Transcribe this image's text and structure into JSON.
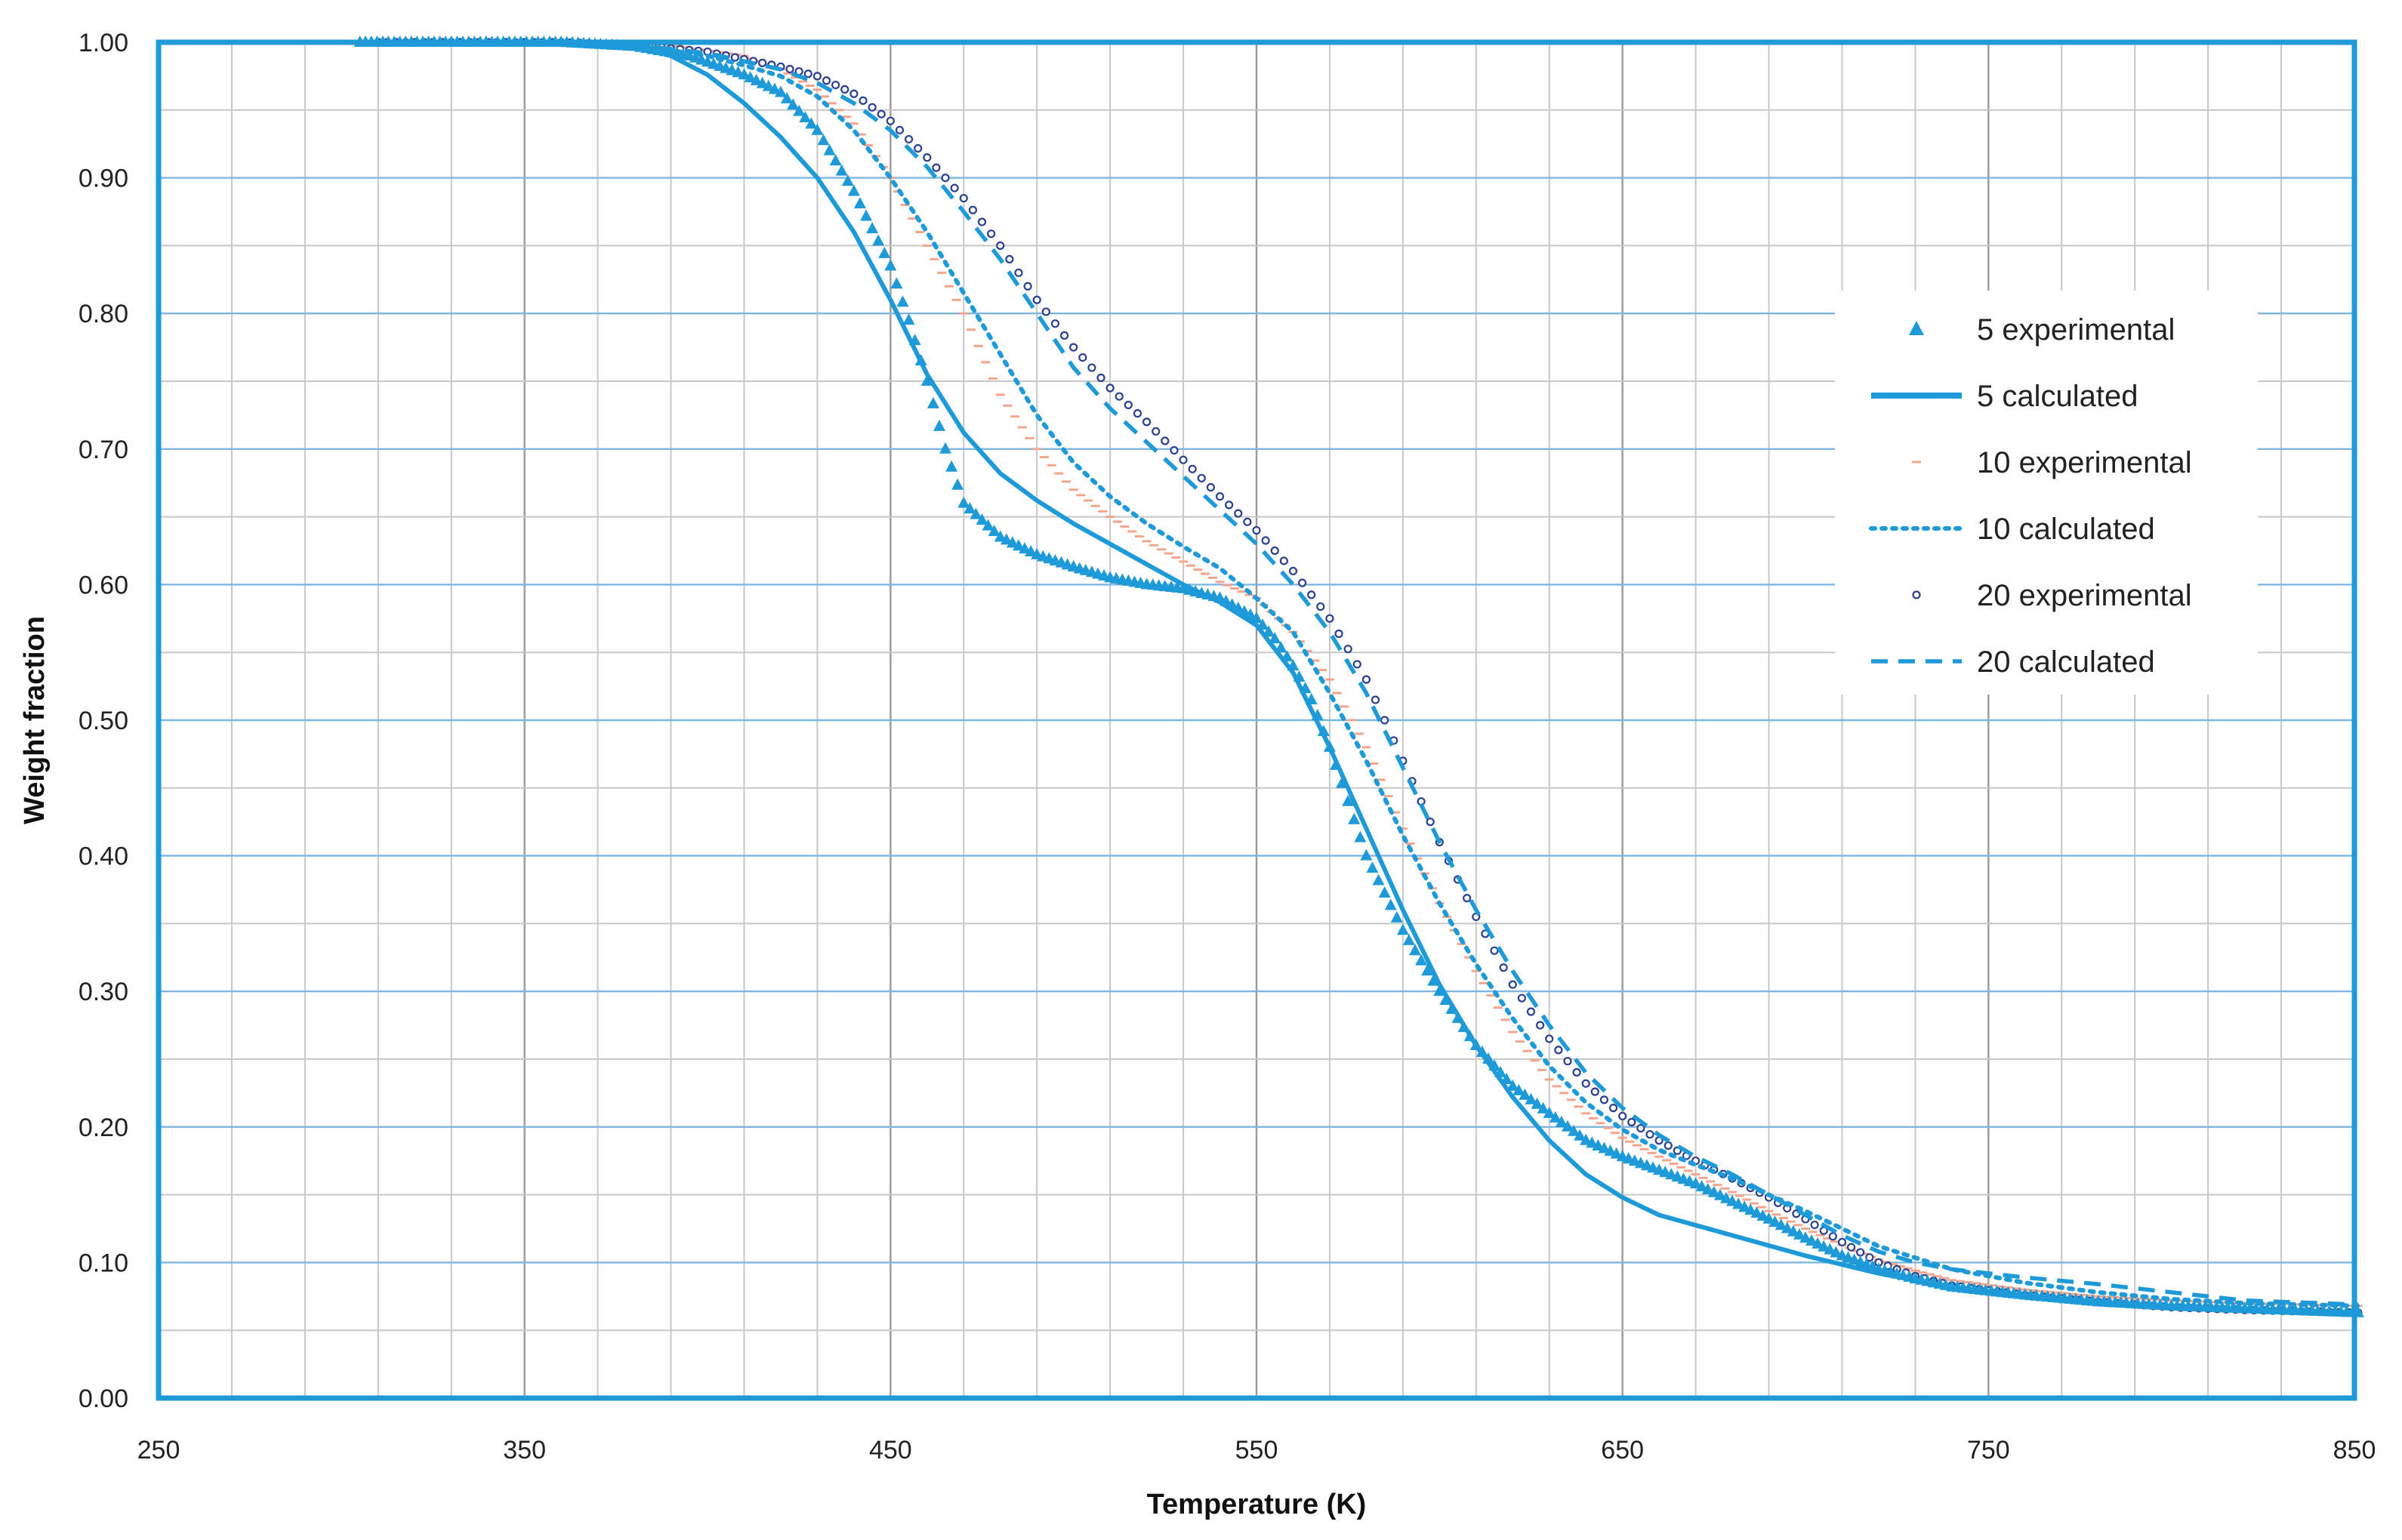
{
  "chart_data": {
    "type": "line",
    "title": "",
    "xlabel": "Temperature (K)",
    "ylabel": "Weight fraction",
    "xlim": [
      250,
      850
    ],
    "ylim": [
      0.0,
      1.0
    ],
    "x_major_ticks": [
      250,
      350,
      450,
      550,
      650,
      750,
      850
    ],
    "x_tick_labels": [
      "250",
      "350",
      "450",
      "550",
      "650",
      "750",
      "850"
    ],
    "x_minor_step": 20,
    "y_major_ticks": [
      0.0,
      0.1,
      0.2,
      0.3,
      0.4,
      0.5,
      0.6,
      0.7,
      0.8,
      0.9,
      1.0
    ],
    "y_tick_labels": [
      "0.00",
      "0.10",
      "0.20",
      "0.30",
      "0.40",
      "0.50",
      "0.60",
      "0.70",
      "0.80",
      "0.90",
      "1.00"
    ],
    "y_minor_step": 0.05,
    "grid": true,
    "legend_position": "right",
    "colors": {
      "blue": "#1f9ad9",
      "salmon": "#f5a58c",
      "navy": "#2b3f8f",
      "grid_major": "#7fb6e0",
      "grid_minor": "#c8c8c8",
      "frame": "#1f9ad9"
    },
    "series": [
      {
        "name": "5 experimental",
        "style": "triangle-markers",
        "color": "#1f9ad9",
        "x": [
          305,
          330,
          360,
          380,
          395,
          410,
          420,
          430,
          440,
          450,
          455,
          460,
          465,
          470,
          480,
          490,
          500,
          510,
          520,
          530,
          540,
          550,
          555,
          560,
          565,
          570,
          575,
          580,
          590,
          600,
          610,
          620,
          630,
          640,
          650,
          660,
          670,
          680,
          690,
          700,
          710,
          720,
          730,
          740,
          760,
          780,
          800,
          820,
          840,
          851
        ],
        "y": [
          1.0,
          1.0,
          1.0,
          0.997,
          0.99,
          0.976,
          0.963,
          0.935,
          0.89,
          0.835,
          0.795,
          0.75,
          0.7,
          0.66,
          0.635,
          0.622,
          0.613,
          0.605,
          0.6,
          0.597,
          0.59,
          0.575,
          0.56,
          0.54,
          0.515,
          0.48,
          0.44,
          0.4,
          0.345,
          0.3,
          0.26,
          0.23,
          0.21,
          0.19,
          0.178,
          0.168,
          0.158,
          0.145,
          0.132,
          0.118,
          0.105,
          0.095,
          0.088,
          0.082,
          0.076,
          0.071,
          0.068,
          0.066,
          0.064,
          0.063
        ]
      },
      {
        "name": "5 calculated",
        "style": "solid",
        "color": "#1f9ad9",
        "x": [
          305,
          330,
          360,
          380,
          390,
          400,
          410,
          420,
          430,
          440,
          450,
          460,
          470,
          480,
          490,
          500,
          510,
          520,
          530,
          540,
          550,
          560,
          570,
          580,
          590,
          600,
          610,
          620,
          630,
          640,
          650,
          660,
          680,
          700,
          720,
          740,
          760,
          780,
          800,
          820,
          851
        ],
        "y": [
          1.0,
          1.0,
          1.0,
          0.997,
          0.99,
          0.976,
          0.955,
          0.93,
          0.9,
          0.86,
          0.81,
          0.755,
          0.712,
          0.682,
          0.662,
          0.645,
          0.63,
          0.615,
          0.6,
          0.587,
          0.57,
          0.535,
          0.48,
          0.42,
          0.36,
          0.305,
          0.26,
          0.222,
          0.19,
          0.165,
          0.148,
          0.135,
          0.12,
          0.105,
          0.092,
          0.082,
          0.075,
          0.07,
          0.067,
          0.065,
          0.063
        ]
      },
      {
        "name": "10 experimental",
        "style": "dash-markers",
        "color": "#f5a58c",
        "x": [
          305,
          330,
          360,
          390,
          410,
          420,
          430,
          440,
          450,
          460,
          470,
          480,
          490,
          500,
          510,
          520,
          530,
          540,
          550,
          560,
          570,
          580,
          590,
          600,
          610,
          620,
          630,
          640,
          650,
          660,
          670,
          680,
          690,
          700,
          710,
          720,
          730,
          740,
          760,
          780,
          800,
          820,
          851
        ],
        "y": [
          1.0,
          1.0,
          1.0,
          0.998,
          0.99,
          0.98,
          0.965,
          0.94,
          0.9,
          0.85,
          0.8,
          0.74,
          0.7,
          0.67,
          0.65,
          0.632,
          0.617,
          0.602,
          0.59,
          0.565,
          0.53,
          0.48,
          0.42,
          0.365,
          0.315,
          0.27,
          0.235,
          0.21,
          0.192,
          0.178,
          0.165,
          0.152,
          0.138,
          0.125,
          0.113,
          0.102,
          0.094,
          0.087,
          0.08,
          0.075,
          0.072,
          0.07,
          0.068
        ]
      },
      {
        "name": "10 calculated",
        "style": "dotted",
        "color": "#1f9ad9",
        "x": [
          305,
          330,
          360,
          380,
          400,
          410,
          420,
          430,
          440,
          450,
          460,
          470,
          480,
          490,
          500,
          510,
          520,
          530,
          540,
          550,
          560,
          570,
          580,
          590,
          600,
          610,
          620,
          630,
          640,
          650,
          660,
          670,
          680,
          690,
          700,
          710,
          720,
          740,
          760,
          780,
          800,
          820,
          851
        ],
        "y": [
          1.0,
          1.0,
          1.0,
          0.998,
          0.99,
          0.983,
          0.975,
          0.96,
          0.935,
          0.9,
          0.86,
          0.815,
          0.77,
          0.725,
          0.69,
          0.665,
          0.645,
          0.628,
          0.612,
          0.59,
          0.565,
          0.52,
          0.47,
          0.415,
          0.365,
          0.32,
          0.28,
          0.245,
          0.218,
          0.198,
          0.183,
          0.172,
          0.162,
          0.15,
          0.138,
          0.125,
          0.112,
          0.095,
          0.085,
          0.078,
          0.073,
          0.07,
          0.068
        ]
      },
      {
        "name": "20 experimental",
        "style": "circle-markers",
        "color": "#2b3f8f",
        "x": [
          310,
          330,
          360,
          380,
          400,
          420,
          430,
          440,
          450,
          460,
          470,
          480,
          490,
          500,
          510,
          520,
          530,
          540,
          550,
          560,
          570,
          580,
          590,
          600,
          610,
          620,
          630,
          640,
          650,
          660,
          670,
          680,
          690,
          700,
          710,
          720,
          730,
          740,
          760,
          780,
          800,
          820,
          851
        ],
        "y": [
          1.0,
          1.0,
          1.0,
          0.998,
          0.993,
          0.982,
          0.975,
          0.962,
          0.942,
          0.915,
          0.885,
          0.85,
          0.81,
          0.775,
          0.745,
          0.72,
          0.692,
          0.665,
          0.64,
          0.61,
          0.575,
          0.53,
          0.47,
          0.41,
          0.355,
          0.305,
          0.265,
          0.232,
          0.208,
          0.19,
          0.175,
          0.162,
          0.148,
          0.132,
          0.115,
          0.1,
          0.09,
          0.083,
          0.076,
          0.071,
          0.067,
          0.065,
          0.063
        ]
      },
      {
        "name": "20 calculated",
        "style": "dashed",
        "color": "#1f9ad9",
        "x": [
          305,
          330,
          360,
          380,
          400,
          420,
          430,
          440,
          450,
          460,
          470,
          480,
          490,
          500,
          510,
          520,
          530,
          540,
          550,
          560,
          570,
          580,
          590,
          600,
          610,
          620,
          630,
          640,
          650,
          660,
          670,
          680,
          690,
          700,
          710,
          720,
          730,
          740,
          760,
          780,
          800,
          820,
          851
        ],
        "y": [
          1.0,
          1.0,
          1.0,
          0.998,
          0.992,
          0.98,
          0.97,
          0.955,
          0.935,
          0.908,
          0.875,
          0.84,
          0.8,
          0.76,
          0.73,
          0.705,
          0.68,
          0.655,
          0.63,
          0.6,
          0.565,
          0.52,
          0.465,
          0.41,
          0.36,
          0.315,
          0.275,
          0.24,
          0.214,
          0.194,
          0.178,
          0.165,
          0.15,
          0.135,
          0.12,
          0.108,
          0.1,
          0.095,
          0.089,
          0.084,
          0.078,
          0.072,
          0.069
        ]
      }
    ]
  }
}
